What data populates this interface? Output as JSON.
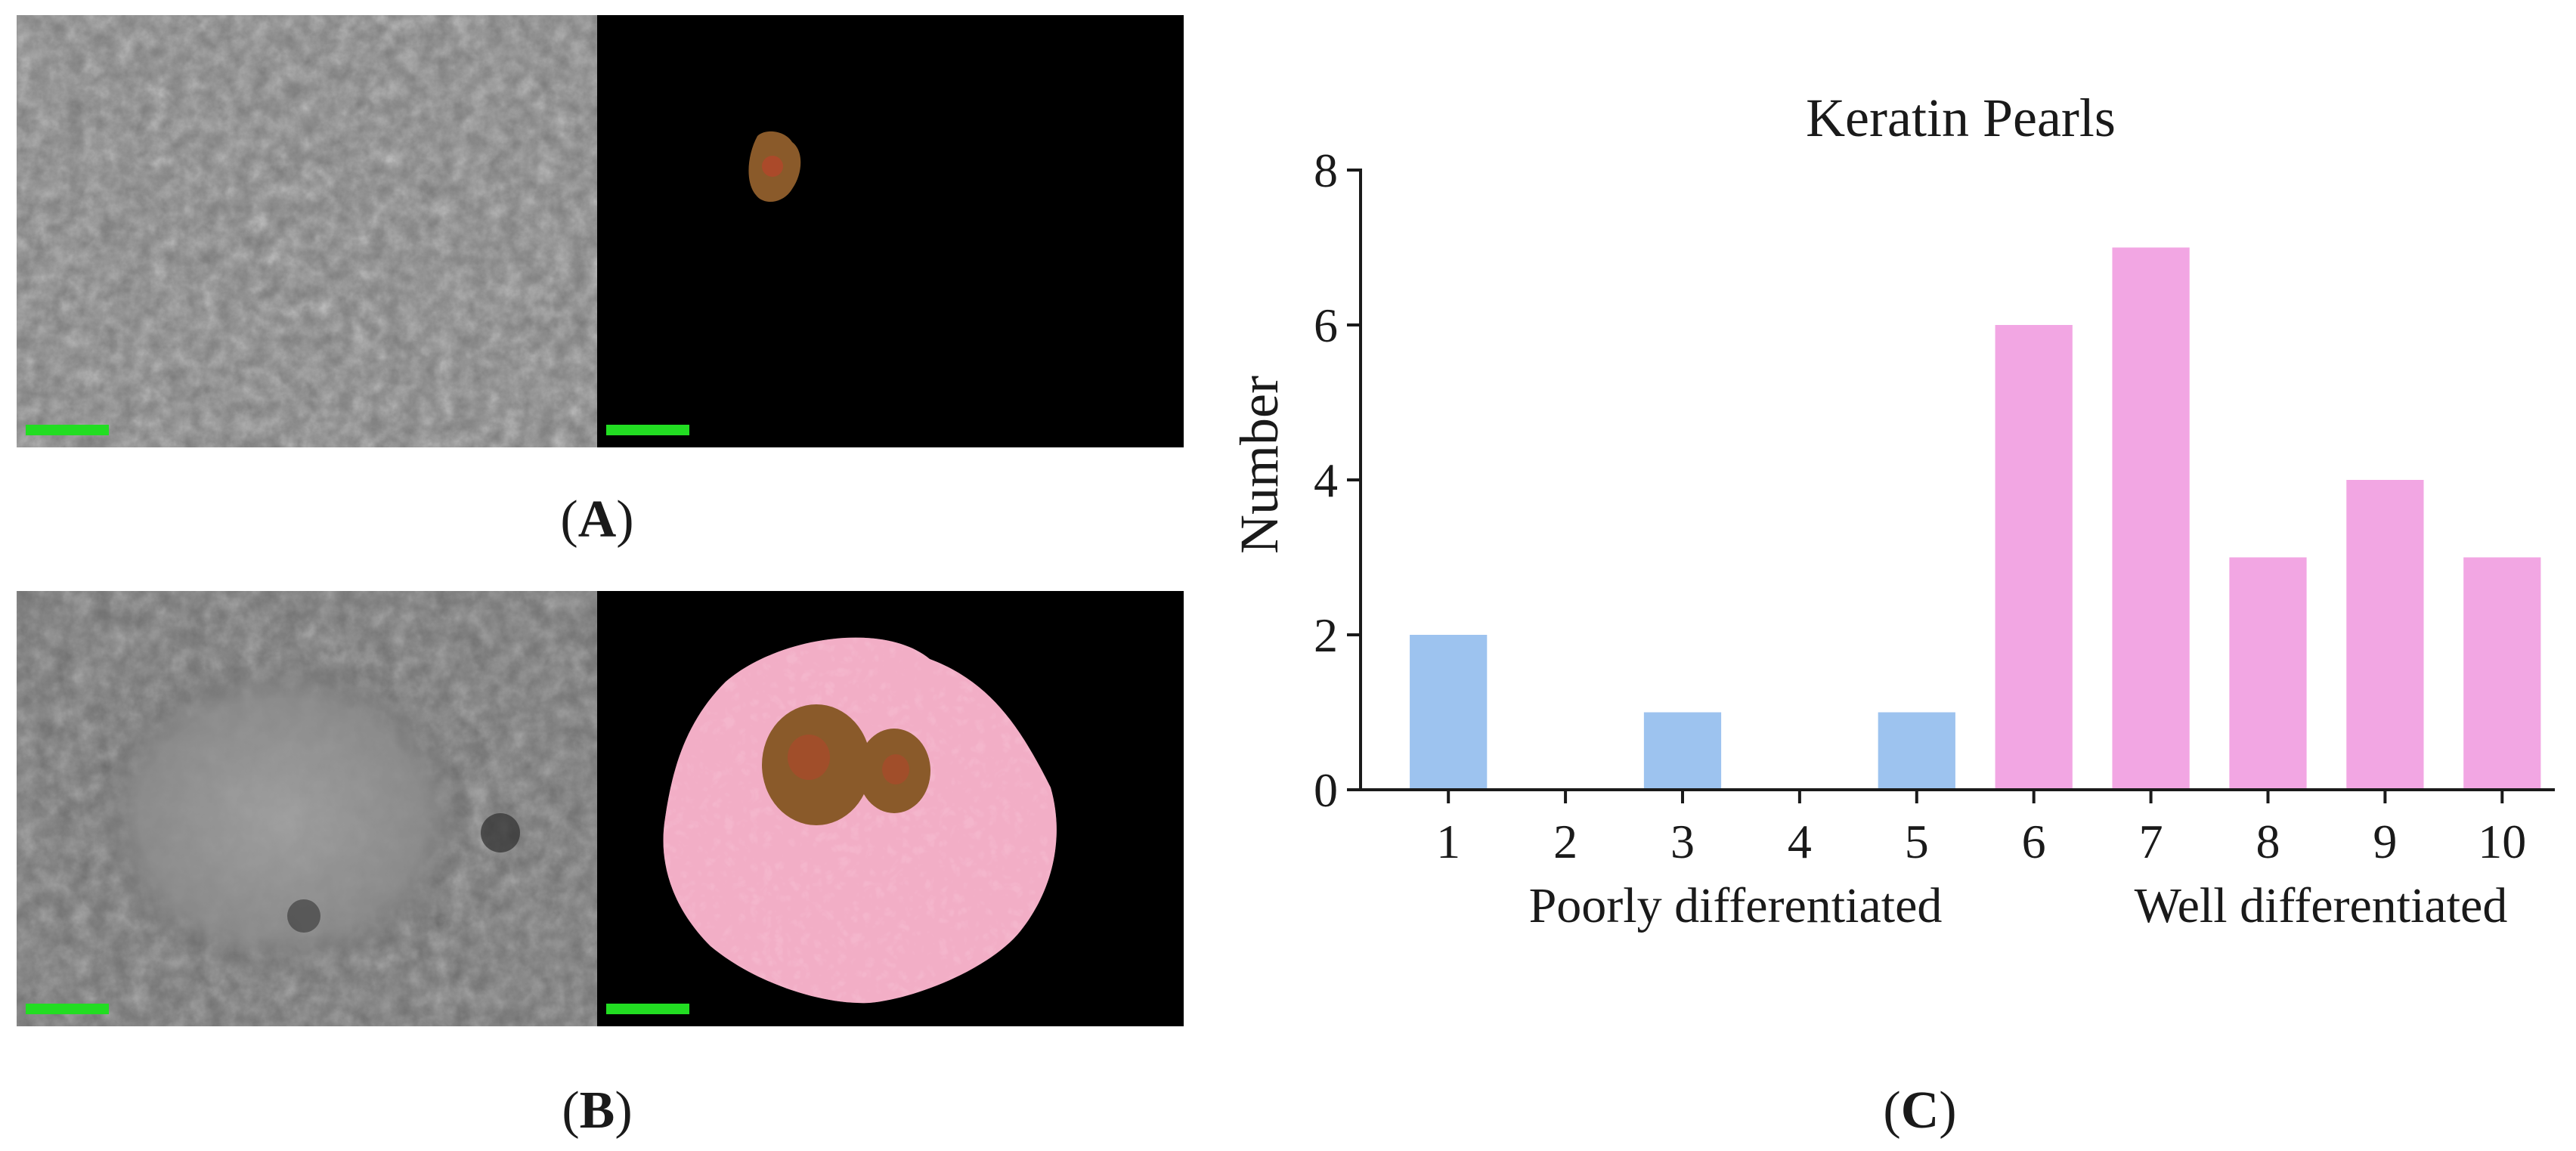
{
  "panels": {
    "a_label": "A",
    "b_label": "B",
    "c_label": "C"
  },
  "colors": {
    "scale_bar": "#22dd22",
    "poorly_bar": "#9dc3ef",
    "well_bar": "#f2a6e3",
    "pearl_fill": "#8a5a2a",
    "pearl_accent": "#cc3a2a",
    "tissue_fill": "#f4b6cc",
    "tissue_spots": "#e0648a"
  },
  "chart_data": {
    "type": "bar",
    "title": "Keratin Pearls",
    "ylabel": "Number",
    "xlabel": "",
    "categories": [
      "1",
      "2",
      "3",
      "4",
      "5",
      "6",
      "7",
      "8",
      "9",
      "10"
    ],
    "values": [
      2,
      0,
      1,
      0,
      1,
      6,
      7,
      3,
      4,
      3
    ],
    "ylim": [
      0,
      8
    ],
    "yticks": [
      "0",
      "2",
      "4",
      "6",
      "8"
    ],
    "groups": [
      {
        "label": "Poorly differentiated",
        "categories": [
          "1",
          "2",
          "3",
          "4",
          "5"
        ],
        "color": "#9dc3ef"
      },
      {
        "label": "Well differentiated",
        "categories": [
          "6",
          "7",
          "8",
          "9",
          "10"
        ],
        "color": "#f2a6e3"
      }
    ],
    "grid": false,
    "legend": "none"
  }
}
